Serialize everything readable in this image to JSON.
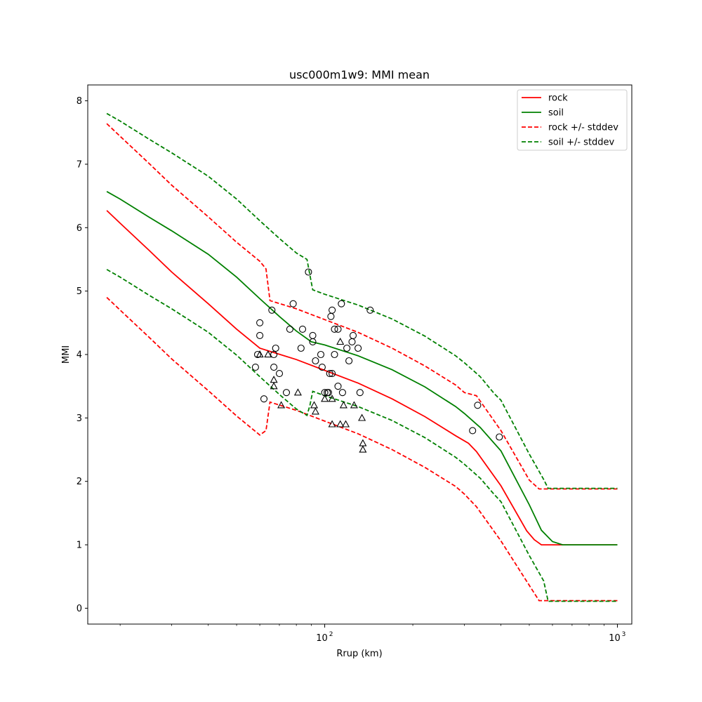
{
  "chart_data": {
    "type": "line",
    "title": "usc000m1w9: MMI mean",
    "xlabel": "Rrup (km)",
    "ylabel": "MMI",
    "xscale": "log",
    "xlim": [
      15.5,
      1120
    ],
    "ylim": [
      -0.25,
      8.25
    ],
    "yticks": [
      "0",
      "1",
      "2",
      "3",
      "4",
      "5",
      "6",
      "7",
      "8"
    ],
    "xticks": [
      {
        "base": "10",
        "exp": "2",
        "value": 100
      },
      {
        "base": "10",
        "exp": "3",
        "value": 1000
      }
    ],
    "grid": false,
    "legend": {
      "placement": "top-right",
      "entries": [
        {
          "label": "rock",
          "color": "#ff0000",
          "style": "solid"
        },
        {
          "label": "soil",
          "color": "#008000",
          "style": "solid"
        },
        {
          "label": "rock +/- stddev",
          "color": "#ff0000",
          "style": "dashed"
        },
        {
          "label": "soil +/- stddev",
          "color": "#008000",
          "style": "dashed"
        }
      ]
    },
    "series": [
      {
        "name": "rock",
        "color": "#ff0000",
        "style": "solid",
        "x": [
          18,
          20,
          25,
          30,
          40,
          50,
          60,
          65,
          80,
          100,
          130,
          170,
          220,
          280,
          310,
          330,
          400,
          490,
          520,
          550,
          600,
          1000
        ],
        "y": [
          6.27,
          6.07,
          5.65,
          5.3,
          4.8,
          4.4,
          4.1,
          4.05,
          3.92,
          3.75,
          3.55,
          3.3,
          3.02,
          2.72,
          2.6,
          2.47,
          1.93,
          1.22,
          1.08,
          1.0,
          1.0,
          1.0
        ]
      },
      {
        "name": "soil",
        "color": "#008000",
        "style": "solid",
        "x": [
          18,
          20,
          25,
          30,
          40,
          50,
          60,
          70,
          80,
          90,
          100,
          130,
          170,
          220,
          280,
          300,
          340,
          400,
          500,
          550,
          600,
          650,
          1000
        ],
        "y": [
          6.57,
          6.45,
          6.17,
          5.95,
          5.58,
          5.22,
          4.88,
          4.6,
          4.37,
          4.2,
          4.15,
          3.98,
          3.76,
          3.49,
          3.18,
          3.07,
          2.85,
          2.48,
          1.63,
          1.23,
          1.05,
          1.0,
          1.0
        ]
      },
      {
        "name": "rock + stddev",
        "color": "#ff0000",
        "style": "dashed",
        "x": [
          18,
          20,
          25,
          30,
          40,
          50,
          60,
          63,
          65,
          80,
          100,
          130,
          170,
          220,
          280,
          300,
          330,
          400,
          500,
          540,
          600,
          1000
        ],
        "y": [
          7.64,
          7.44,
          7.02,
          6.67,
          6.17,
          5.77,
          5.47,
          5.35,
          4.85,
          4.72,
          4.55,
          4.35,
          4.1,
          3.82,
          3.52,
          3.4,
          3.35,
          2.8,
          2.02,
          1.88,
          1.88,
          1.88
        ]
      },
      {
        "name": "rock - stddev",
        "color": "#ff0000",
        "style": "dashed",
        "x": [
          18,
          20,
          25,
          30,
          40,
          50,
          60,
          63,
          65,
          80,
          100,
          130,
          170,
          220,
          280,
          300,
          330,
          400,
          500,
          540,
          600,
          1000
        ],
        "y": [
          4.9,
          4.7,
          4.28,
          3.93,
          3.43,
          3.03,
          2.73,
          2.8,
          3.25,
          3.12,
          2.95,
          2.75,
          2.5,
          2.22,
          1.92,
          1.8,
          1.6,
          1.06,
          0.36,
          0.12,
          0.12,
          0.12
        ]
      },
      {
        "name": "soil + stddev",
        "color": "#008000",
        "style": "dashed",
        "x": [
          18,
          20,
          25,
          30,
          40,
          50,
          60,
          70,
          80,
          87,
          89,
          91,
          100,
          130,
          170,
          220,
          280,
          300,
          340,
          380,
          400,
          500,
          560,
          580,
          1000
        ],
        "y": [
          7.8,
          7.68,
          7.4,
          7.18,
          6.81,
          6.45,
          6.11,
          5.83,
          5.6,
          5.5,
          5.25,
          5.02,
          4.95,
          4.78,
          4.56,
          4.29,
          3.98,
          3.87,
          3.65,
          3.38,
          3.28,
          2.43,
          2.03,
          1.89,
          1.89
        ]
      },
      {
        "name": "soil - stddev",
        "color": "#008000",
        "style": "dashed",
        "x": [
          18,
          20,
          25,
          30,
          40,
          50,
          60,
          70,
          80,
          87,
          89,
          91,
          100,
          130,
          170,
          220,
          280,
          300,
          340,
          380,
          400,
          500,
          560,
          580,
          1000
        ],
        "y": [
          5.34,
          5.22,
          4.94,
          4.72,
          4.35,
          3.99,
          3.65,
          3.37,
          3.14,
          3.04,
          3.2,
          3.42,
          3.35,
          3.18,
          2.96,
          2.69,
          2.38,
          2.27,
          2.05,
          1.79,
          1.68,
          0.83,
          0.43,
          0.11,
          0.11
        ]
      }
    ],
    "scatter": [
      {
        "name": "observations (circle)",
        "marker": "circle",
        "points": [
          [
            88,
            5.3
          ],
          [
            78,
            4.8
          ],
          [
            66,
            4.7
          ],
          [
            60,
            4.5
          ],
          [
            60,
            4.3
          ],
          [
            59,
            4.0
          ],
          [
            58,
            3.8
          ],
          [
            62,
            3.3
          ],
          [
            67,
            4.0
          ],
          [
            68,
            4.1
          ],
          [
            67,
            3.8
          ],
          [
            70,
            3.7
          ],
          [
            74,
            3.4
          ],
          [
            76,
            4.4
          ],
          [
            84,
            4.4
          ],
          [
            83,
            4.1
          ],
          [
            91,
            4.3
          ],
          [
            91,
            4.2
          ],
          [
            93,
            3.9
          ],
          [
            97,
            4.0
          ],
          [
            98,
            3.8
          ],
          [
            100,
            3.4
          ],
          [
            102,
            3.4
          ],
          [
            104,
            3.7
          ],
          [
            106,
            3.7
          ],
          [
            108,
            4.0
          ],
          [
            103,
            3.4
          ],
          [
            105,
            4.6
          ],
          [
            106,
            4.7
          ],
          [
            108,
            4.4
          ],
          [
            111,
            4.4
          ],
          [
            114,
            4.8
          ],
          [
            111,
            3.5
          ],
          [
            115,
            3.4
          ],
          [
            119,
            4.1
          ],
          [
            121,
            3.9
          ],
          [
            124,
            4.2
          ],
          [
            125,
            4.3
          ],
          [
            130,
            4.1
          ],
          [
            132,
            3.4
          ],
          [
            143,
            4.7
          ],
          [
            320,
            2.8
          ],
          [
            333,
            3.2
          ],
          [
            395,
            2.7
          ]
        ]
      },
      {
        "name": "observations (triangle)",
        "marker": "triangle",
        "points": [
          [
            60,
            4.0
          ],
          [
            64,
            4.0
          ],
          [
            67,
            3.6
          ],
          [
            67,
            3.5
          ],
          [
            71,
            3.2
          ],
          [
            81,
            3.4
          ],
          [
            92,
            3.2
          ],
          [
            93,
            3.1
          ],
          [
            100,
            3.3
          ],
          [
            106,
            3.3
          ],
          [
            106,
            2.9
          ],
          [
            113,
            4.2
          ],
          [
            113,
            2.9
          ],
          [
            116,
            3.2
          ],
          [
            118,
            2.9
          ],
          [
            126,
            3.2
          ],
          [
            134,
            3.0
          ],
          [
            135,
            2.6
          ],
          [
            135,
            2.5
          ]
        ]
      }
    ]
  }
}
